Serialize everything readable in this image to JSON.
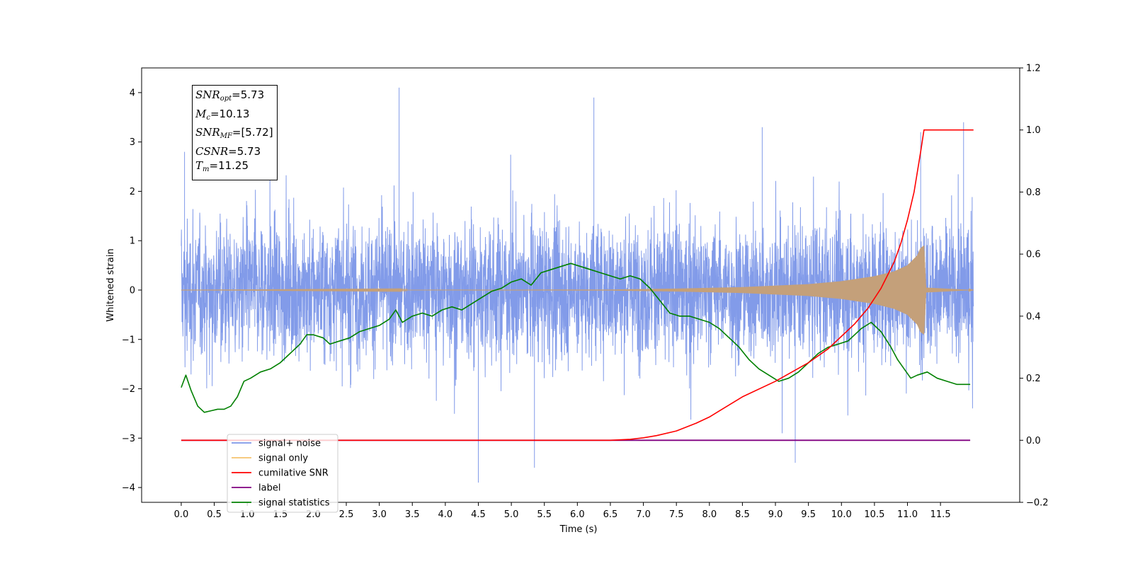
{
  "chart_data": {
    "type": "line",
    "xlabel": "Time (s)",
    "ylabel": "Whitened strain",
    "xlim": [
      -0.6,
      12.7
    ],
    "ylim": [
      -4.3,
      4.5
    ],
    "y2lim": [
      -0.2,
      1.2
    ],
    "xticks": [
      "0.0",
      "0.5",
      "1.0",
      "1.5",
      "2.0",
      "2.5",
      "3.0",
      "3.5",
      "4.0",
      "4.5",
      "5.0",
      "5.5",
      "6.0",
      "6.5",
      "7.0",
      "7.5",
      "8.0",
      "8.5",
      "9.0",
      "9.5",
      "10.0",
      "10.5",
      "11.0",
      "11.5"
    ],
    "yticks": [
      "4",
      "3",
      "2",
      "1",
      "0",
      "−1",
      "−2",
      "−3",
      "−4"
    ],
    "y2ticks": [
      "1.2",
      "1.0",
      "0.8",
      "0.6",
      "0.4",
      "0.2",
      "0.0",
      "−0.2"
    ],
    "legend_placement": "lower-left",
    "legend": [
      {
        "label": "signal+ noise",
        "color": "#7b96e8"
      },
      {
        "label": "signal only",
        "color": "#f5c36e"
      },
      {
        "label": "cumilative SNR",
        "color": "#ff0000"
      },
      {
        "label": "label",
        "color": "#800080"
      },
      {
        "label": "signal statistics",
        "color": "#008000"
      }
    ],
    "info_box": {
      "snr_opt": "=5.73",
      "mc": "=10.13",
      "snr_mf": "=[5.72]",
      "csnr": "=5.73",
      "tm": "=11.25"
    },
    "series": [
      {
        "name": "signal+ noise",
        "axis": "left",
        "color": "#7b96e8",
        "x_range": [
          0.0,
          12.0
        ],
        "envelope_low": -2.0,
        "envelope_high": 2.5,
        "peaks": [
          [
            0.05,
            2.8
          ],
          [
            3.3,
            4.1
          ],
          [
            4.5,
            -3.9
          ],
          [
            5.35,
            -3.6
          ],
          [
            6.25,
            3.9
          ],
          [
            8.8,
            3.3
          ],
          [
            9.3,
            -3.5
          ],
          [
            11.2,
            3.2
          ],
          [
            11.85,
            3.4
          ]
        ]
      },
      {
        "name": "signal only",
        "axis": "left",
        "color": "#f5c36e",
        "x": [
          0,
          6.5,
          7.5,
          8.5,
          9.5,
          10.0,
          10.5,
          10.8,
          11.0,
          11.15,
          11.2,
          11.25,
          11.28,
          12.0
        ],
        "amplitude": [
          0.0,
          0.01,
          0.03,
          0.06,
          0.12,
          0.18,
          0.28,
          0.38,
          0.5,
          0.7,
          0.85,
          0.9,
          0.05,
          0.0
        ]
      },
      {
        "name": "cumilative SNR",
        "axis": "right",
        "color": "#ff0000",
        "x": [
          0,
          6.5,
          6.8,
          7.0,
          7.2,
          7.5,
          7.8,
          8.0,
          8.5,
          9.0,
          9.5,
          9.8,
          10.0,
          10.2,
          10.4,
          10.6,
          10.8,
          10.9,
          11.0,
          11.1,
          11.2,
          11.25,
          11.5,
          12.0
        ],
        "y": [
          0,
          0,
          0.003,
          0.008,
          0.015,
          0.03,
          0.055,
          0.075,
          0.14,
          0.19,
          0.25,
          0.295,
          0.335,
          0.375,
          0.425,
          0.49,
          0.575,
          0.635,
          0.71,
          0.8,
          0.93,
          1.0,
          1.0,
          1.0
        ]
      },
      {
        "name": "label",
        "axis": "right",
        "color": "#800080",
        "x": [
          0,
          11.95
        ],
        "y": [
          0,
          0
        ]
      },
      {
        "name": "signal statistics",
        "axis": "right",
        "color": "#008000",
        "x": [
          0,
          0.07,
          0.15,
          0.25,
          0.35,
          0.45,
          0.55,
          0.65,
          0.75,
          0.85,
          0.95,
          1.05,
          1.2,
          1.35,
          1.5,
          1.6,
          1.7,
          1.8,
          1.9,
          2.0,
          2.15,
          2.25,
          2.4,
          2.55,
          2.7,
          2.85,
          3.0,
          3.15,
          3.25,
          3.35,
          3.5,
          3.65,
          3.8,
          3.95,
          4.1,
          4.25,
          4.4,
          4.55,
          4.7,
          4.85,
          5.0,
          5.15,
          5.3,
          5.45,
          5.6,
          5.75,
          5.9,
          6.05,
          6.2,
          6.35,
          6.5,
          6.65,
          6.8,
          6.95,
          7.1,
          7.25,
          7.4,
          7.55,
          7.7,
          7.85,
          8.0,
          8.15,
          8.3,
          8.45,
          8.6,
          8.75,
          8.9,
          9.05,
          9.2,
          9.35,
          9.5,
          9.65,
          9.8,
          9.95,
          10.1,
          10.3,
          10.45,
          10.6,
          10.75,
          10.85,
          10.95,
          11.05,
          11.15,
          11.3,
          11.45,
          11.6,
          11.75,
          11.95
        ],
        "y": [
          0.17,
          0.21,
          0.16,
          0.11,
          0.09,
          0.095,
          0.1,
          0.1,
          0.11,
          0.14,
          0.19,
          0.2,
          0.22,
          0.23,
          0.25,
          0.27,
          0.29,
          0.31,
          0.34,
          0.34,
          0.33,
          0.31,
          0.32,
          0.33,
          0.35,
          0.36,
          0.37,
          0.39,
          0.42,
          0.38,
          0.4,
          0.41,
          0.4,
          0.42,
          0.43,
          0.42,
          0.44,
          0.46,
          0.48,
          0.49,
          0.51,
          0.52,
          0.5,
          0.54,
          0.55,
          0.56,
          0.57,
          0.56,
          0.55,
          0.54,
          0.53,
          0.52,
          0.53,
          0.52,
          0.49,
          0.45,
          0.41,
          0.4,
          0.4,
          0.39,
          0.38,
          0.36,
          0.33,
          0.3,
          0.26,
          0.23,
          0.21,
          0.19,
          0.2,
          0.22,
          0.25,
          0.28,
          0.3,
          0.31,
          0.32,
          0.36,
          0.38,
          0.35,
          0.3,
          0.26,
          0.23,
          0.2,
          0.21,
          0.22,
          0.2,
          0.19,
          0.18,
          0.18
        ]
      }
    ]
  }
}
